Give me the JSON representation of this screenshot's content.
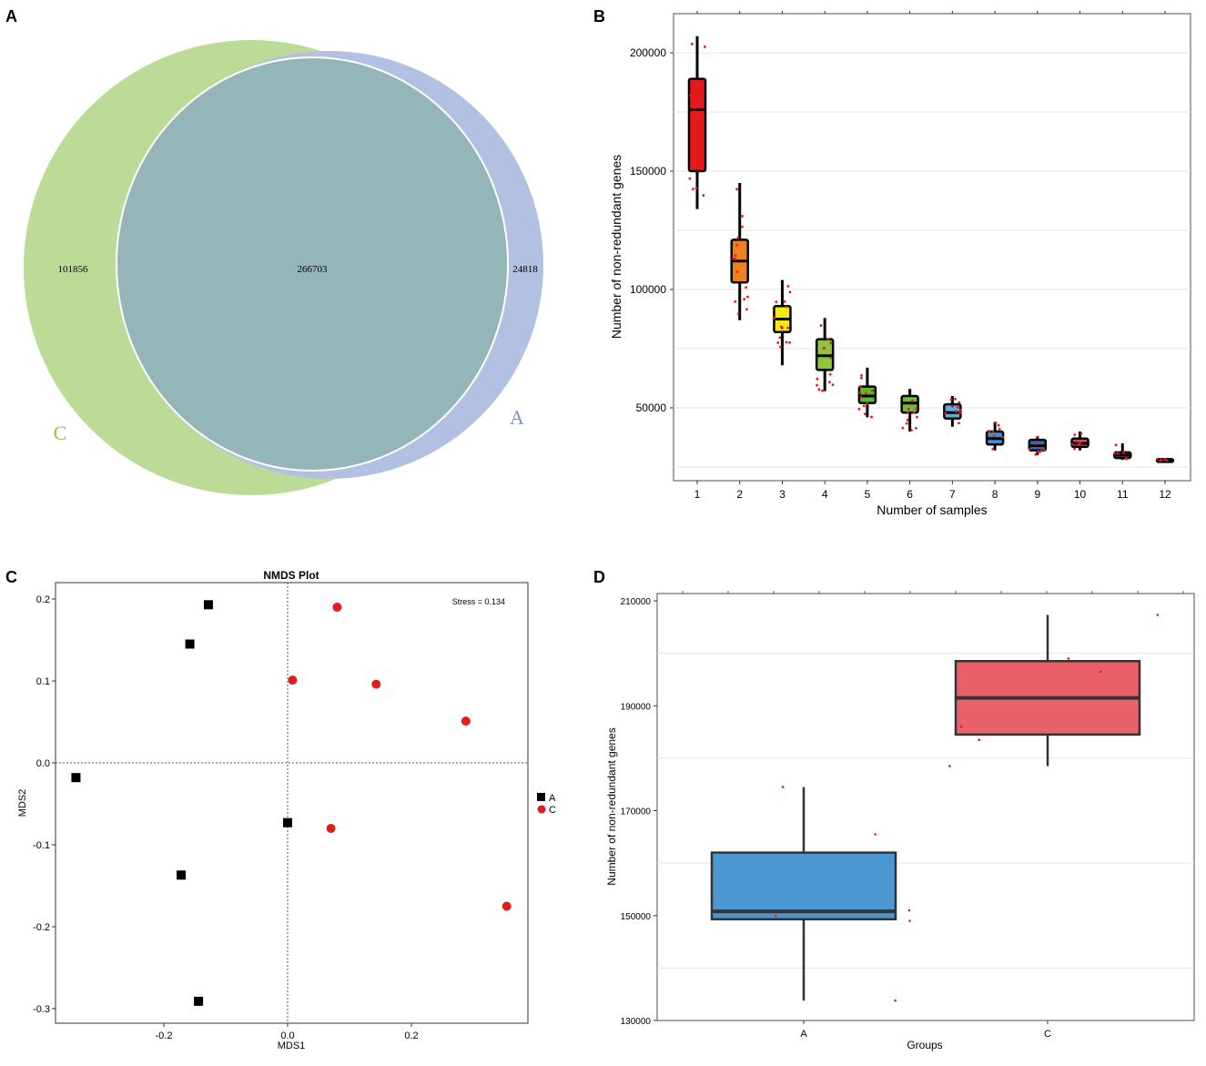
{
  "panels": {
    "a": {
      "letter": "A"
    },
    "b": {
      "letter": "B"
    },
    "c": {
      "letter": "C"
    },
    "d": {
      "letter": "D"
    }
  },
  "colors": {
    "venn_c": "#bcdb96",
    "venn_a": "#b2c0e2",
    "venn_overlap": "#94b6b8",
    "venn_c_label": "#8cc63f",
    "venn_a_label": "#7b93cc",
    "grid": "#e4e4e4",
    "jitter": "#e41a1c",
    "box_b": [
      "#e41a1c",
      "#f07f1f",
      "#f5ea14",
      "#8cc63f",
      "#5ab82f",
      "#74b73f",
      "#5baee0",
      "#3c8fd6",
      "#2f6fb9",
      "#e9484f",
      "#d94c74",
      "#000000"
    ],
    "group_a": "#4a97d2",
    "group_c": "#e8616a",
    "nmds_c": "#e41a1c",
    "nmds_a": "#000000"
  },
  "chart_data": [
    {
      "panel": "A",
      "type": "venn",
      "sets": [
        {
          "name": "C",
          "unique": 101856
        },
        {
          "name": "A",
          "unique": 24818
        }
      ],
      "intersection": 266703,
      "labels": {
        "c_unique": "101856",
        "shared": "266703",
        "a_unique": "24818",
        "c_name": "C",
        "a_name": "A"
      }
    },
    {
      "panel": "B",
      "type": "box",
      "xlabel": "Number of samples",
      "ylabel": "Number of non-redundant genes",
      "ylim": [
        25000,
        210000
      ],
      "yticks": [
        50000,
        100000,
        150000,
        200000
      ],
      "ytick_labels": [
        "50000",
        "100000",
        "150000",
        "200000"
      ],
      "categories": [
        "1",
        "2",
        "3",
        "4",
        "5",
        "6",
        "7",
        "8",
        "9",
        "10",
        "11",
        "12"
      ],
      "boxes": [
        {
          "min": 134000,
          "q1": 150000,
          "median": 176000,
          "q3": 189000,
          "max": 207000
        },
        {
          "min": 87000,
          "q1": 103000,
          "median": 112000,
          "q3": 121000,
          "max": 145000
        },
        {
          "min": 68000,
          "q1": 82000,
          "median": 87500,
          "q3": 93000,
          "max": 104000
        },
        {
          "min": 57000,
          "q1": 66000,
          "median": 72000,
          "q3": 79000,
          "max": 88000
        },
        {
          "min": 46000,
          "q1": 52000,
          "median": 55000,
          "q3": 59000,
          "max": 67000
        },
        {
          "min": 40000,
          "q1": 48000,
          "median": 52000,
          "q3": 55000,
          "max": 58000
        },
        {
          "min": 42000,
          "q1": 45500,
          "median": 48000,
          "q3": 51500,
          "max": 55000
        },
        {
          "min": 32000,
          "q1": 34500,
          "median": 37000,
          "q3": 40000,
          "max": 44000
        },
        {
          "min": 30000,
          "q1": 32000,
          "median": 34000,
          "q3": 36500,
          "max": 38000
        },
        {
          "min": 32000,
          "q1": 33500,
          "median": 35000,
          "q3": 37000,
          "max": 40000
        },
        {
          "min": 28000,
          "q1": 28800,
          "median": 30000,
          "q3": 31200,
          "max": 35000
        },
        {
          "min": 27500,
          "q1": 27700,
          "median": 28000,
          "q3": 28300,
          "max": 28500
        }
      ]
    },
    {
      "panel": "C",
      "type": "scatter",
      "title": "NMDS Plot",
      "xlabel": "MDS1",
      "ylabel": "MDS2",
      "annotation": "Stress = 0.134",
      "xlim": [
        -0.37,
        0.39
      ],
      "ylim": [
        -0.315,
        0.22
      ],
      "xticks": [
        -0.2,
        0.0,
        0.2
      ],
      "xtick_labels": [
        "-0.2",
        "0.0",
        "0.2"
      ],
      "yticks": [
        -0.3,
        -0.2,
        -0.1,
        0.0,
        0.1,
        0.2
      ],
      "ytick_labels": [
        "-0.3",
        "-0.2",
        "-0.1",
        "0.0",
        "0.1",
        "0.2"
      ],
      "legend": [
        {
          "name": "A",
          "marker": "square"
        },
        {
          "name": "C",
          "marker": "circle"
        }
      ],
      "series": [
        {
          "name": "A",
          "marker": "square",
          "x": [
            -0.128,
            -0.158,
            -0.342,
            -0.172,
            -0.144,
            0.0
          ],
          "y": [
            0.193,
            0.145,
            -0.018,
            -0.137,
            -0.291,
            -0.073
          ]
        },
        {
          "name": "C",
          "marker": "circle",
          "x": [
            0.08,
            0.008,
            0.143,
            0.288,
            0.07,
            0.354
          ],
          "y": [
            0.19,
            0.101,
            0.096,
            0.051,
            -0.08,
            -0.175
          ]
        }
      ]
    },
    {
      "panel": "D",
      "type": "box",
      "xlabel": "Groups",
      "ylabel": "Number of non-redundant genes",
      "ylim": [
        130000,
        212000
      ],
      "yticks": [
        130000,
        150000,
        170000,
        190000,
        210000
      ],
      "ytick_labels": [
        "130000",
        "150000",
        "170000",
        "190000",
        "210000"
      ],
      "categories": [
        "A",
        "C"
      ],
      "boxes": [
        {
          "min": 133800,
          "q1": 149300,
          "median": 150800,
          "q3": 162000,
          "max": 174500
        },
        {
          "min": 178500,
          "q1": 184500,
          "median": 191500,
          "q3": 198500,
          "max": 207300
        }
      ],
      "points": [
        {
          "group": "A",
          "values": [
            133800,
            149000,
            150000,
            151000,
            165500,
            174500
          ]
        },
        {
          "group": "C",
          "values": [
            178500,
            183500,
            186000,
            196500,
            199000,
            207300
          ]
        }
      ]
    }
  ]
}
